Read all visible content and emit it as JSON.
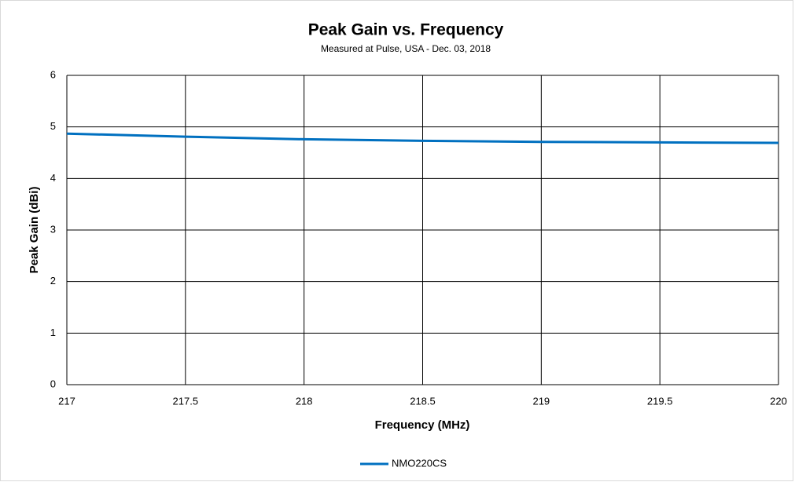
{
  "chart_data": {
    "type": "line",
    "title": "Peak Gain vs. Frequency",
    "subtitle": "Measured at Pulse, USA - Dec. 03, 2018",
    "x_label": "Frequency (MHz)",
    "y_label": "Peak Gain (dBi)",
    "x": [
      217,
      217.5,
      218,
      218.5,
      219,
      219.5,
      220
    ],
    "series": [
      {
        "name": "NMO220CS",
        "color": "#0070c0",
        "values": [
          4.87,
          4.81,
          4.76,
          4.73,
          4.71,
          4.7,
          4.69
        ]
      }
    ],
    "xlim": [
      217,
      220
    ],
    "xticks": [
      217,
      217.5,
      218,
      218.5,
      219,
      219.5,
      220
    ],
    "ylim": [
      0,
      6
    ],
    "yticks": [
      0,
      1,
      2,
      3,
      4,
      5,
      6
    ],
    "grid": true,
    "legend": "bottom"
  }
}
